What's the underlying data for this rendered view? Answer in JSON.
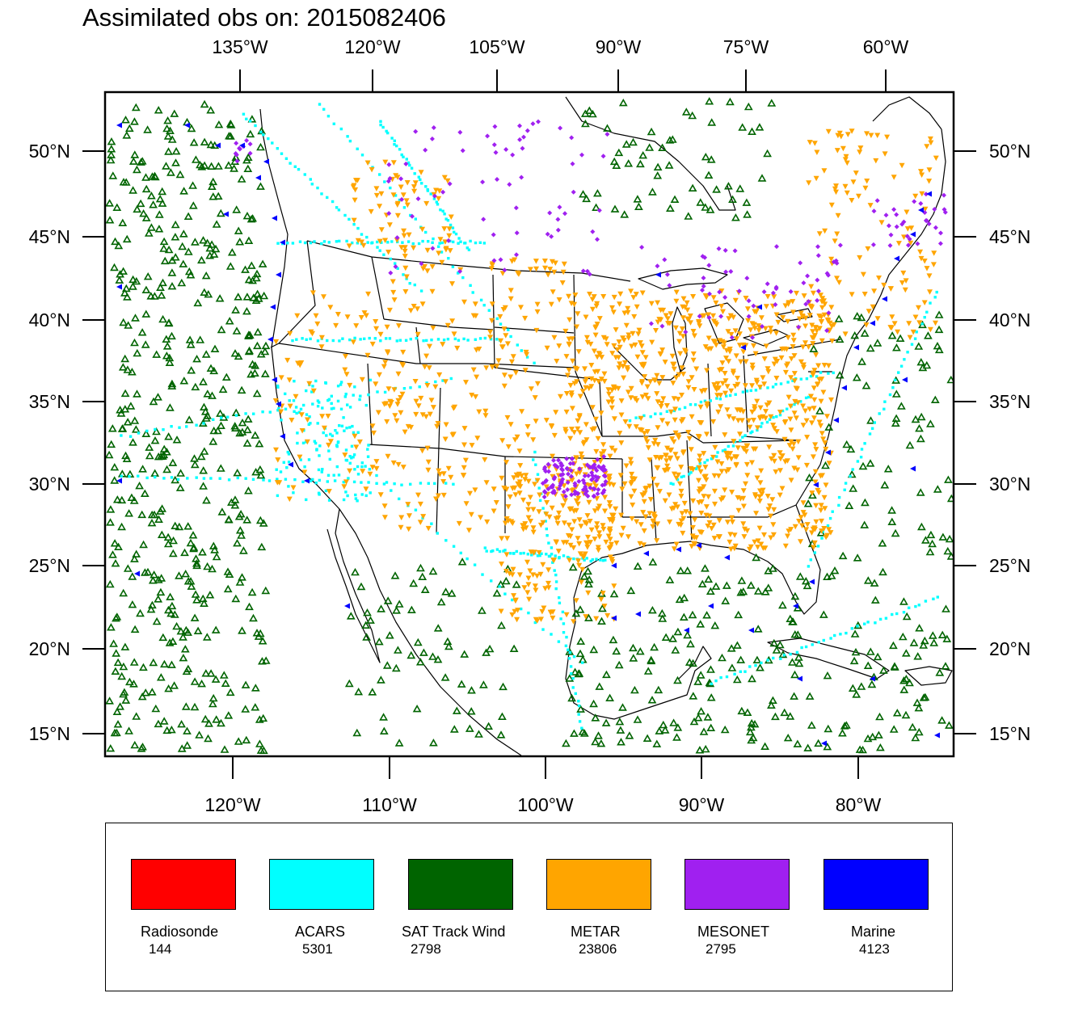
{
  "title": "Assimilated obs on: 2015082406",
  "map": {
    "top_lon_labels": [
      "135°W",
      "120°W",
      "105°W",
      "90°W",
      "75°W",
      "60°W"
    ],
    "bottom_lon_labels": [
      "120°W",
      "110°W",
      "100°W",
      "90°W",
      "80°W"
    ],
    "lat_labels": [
      "50°N",
      "45°N",
      "40°N",
      "35°N",
      "30°N",
      "25°N",
      "20°N",
      "15°N"
    ],
    "background": "#ffffff",
    "line_color": "#000000"
  },
  "legend": {
    "items": [
      {
        "name": "Radiosonde",
        "count": "144",
        "color": "#ff0000"
      },
      {
        "name": "ACARS",
        "count": "5301",
        "color": "#00ffff"
      },
      {
        "name": "SAT Track Wind",
        "count": "2798",
        "color": "#006400"
      },
      {
        "name": "METAR",
        "count": "23806",
        "color": "#ffa500"
      },
      {
        "name": "MESONET",
        "count": "2795",
        "color": "#a020f0"
      },
      {
        "name": "Marine",
        "count": "4123",
        "color": "#0000ff"
      }
    ]
  }
}
